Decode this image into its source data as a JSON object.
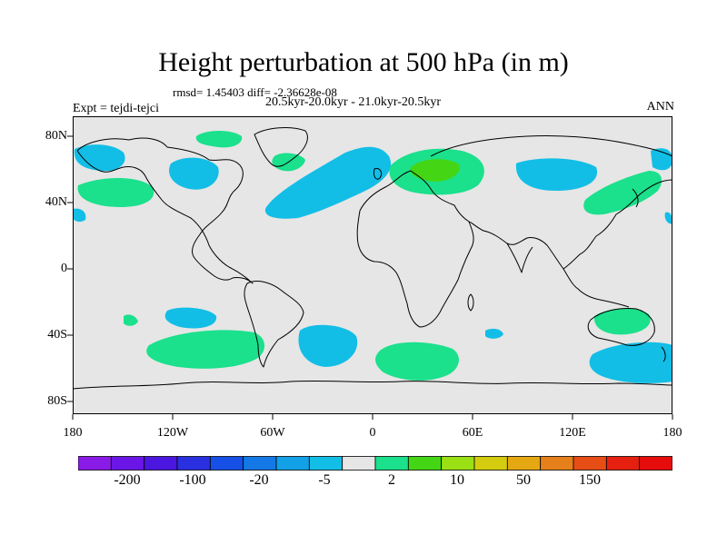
{
  "title": "Height perturbation at 500 hPa (in m)",
  "stats_line": "rmsd= 1.45403 diff= -2.36628e-08",
  "periods_line": "20.5kyr-20.0kyr - 21.0kyr-20.5kyr",
  "experiment_label": "Expt = tejdi-tejci",
  "season_label": "ANN",
  "colors": {
    "land_background": "#e6e6e6",
    "cyan_negative": "#12bee6",
    "green_positive": "#1be08c",
    "bright_green": "#44d614",
    "coastline": "#000000"
  },
  "axes": {
    "x_ticks": [
      "180",
      "120W",
      "60W",
      "0",
      "60E",
      "120E",
      "180"
    ],
    "y_ticks": [
      "80N",
      "40N",
      "0",
      "40S",
      "80S"
    ]
  },
  "colorbar": {
    "colors": [
      "#8a1ae6",
      "#6a16e6",
      "#4b16e0",
      "#2a30e0",
      "#1650e6",
      "#1478e6",
      "#12a0e6",
      "#12bee6",
      "#e6e6e6",
      "#1be08c",
      "#44d614",
      "#9ae014",
      "#d4cc0f",
      "#e6a812",
      "#e6801a",
      "#e64e16",
      "#e62010",
      "#e60c0c"
    ],
    "labels": [
      "-200",
      "-100",
      "-20",
      "-5",
      "2",
      "10",
      "50",
      "150"
    ]
  }
}
